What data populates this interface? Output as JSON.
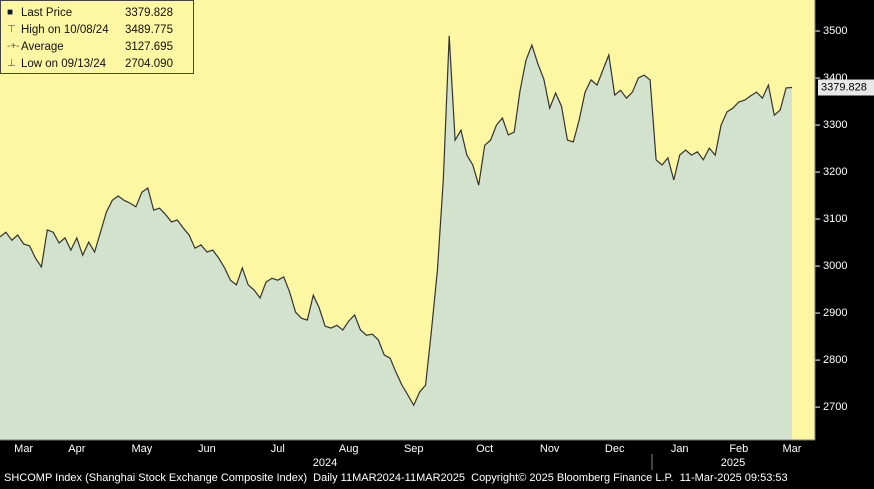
{
  "chart_data": {
    "type": "area",
    "categories": [
      null,
      null,
      null,
      null,
      "Mar",
      null,
      null,
      null,
      null,
      null,
      null,
      null,
      null,
      "Apr",
      null,
      null,
      null,
      null,
      null,
      null,
      null,
      null,
      null,
      null,
      "May",
      null,
      null,
      null,
      null,
      null,
      null,
      null,
      null,
      null,
      null,
      "Jun",
      null,
      null,
      null,
      null,
      null,
      null,
      null,
      null,
      null,
      null,
      null,
      "Jul",
      null,
      null,
      null,
      null,
      null,
      null,
      null,
      null,
      null,
      null,
      null,
      "Aug",
      null,
      null,
      null,
      null,
      null,
      null,
      null,
      null,
      null,
      null,
      "Sep",
      null,
      null,
      null,
      null,
      null,
      null,
      null,
      null,
      null,
      null,
      null,
      "Oct",
      null,
      null,
      null,
      null,
      null,
      null,
      null,
      null,
      null,
      null,
      "Nov",
      null,
      null,
      null,
      null,
      null,
      null,
      null,
      null,
      null,
      null,
      "Dec",
      null,
      null,
      null,
      null,
      null,
      null,
      null,
      null,
      null,
      null,
      "Jan",
      null,
      null,
      null,
      null,
      null,
      null,
      null,
      null,
      null,
      "Feb",
      null,
      null,
      null,
      null,
      null,
      null,
      null,
      null,
      "Mar"
    ],
    "values": [
      3062,
      3072,
      3055,
      3066,
      3047,
      3043,
      3017,
      2998,
      3077,
      3072,
      3049,
      3060,
      3034,
      3060,
      3023,
      3051,
      3030,
      3072,
      3115,
      3140,
      3149,
      3140,
      3134,
      3126,
      3157,
      3166,
      3119,
      3123,
      3110,
      3094,
      3098,
      3081,
      3066,
      3038,
      3045,
      3030,
      3034,
      3017,
      2996,
      2970,
      2960,
      2996,
      2960,
      2949,
      2932,
      2966,
      2974,
      2970,
      2977,
      2945,
      2902,
      2889,
      2885,
      2938,
      2911,
      2872,
      2868,
      2874,
      2864,
      2883,
      2896,
      2864,
      2853,
      2855,
      2843,
      2811,
      2804,
      2774,
      2747,
      2726,
      2704.09,
      2732,
      2747,
      2864,
      2991,
      3183,
      3489.775,
      3268,
      3289,
      3236,
      3215,
      3172,
      3257,
      3268,
      3300,
      3315,
      3279,
      3285,
      3374,
      3438,
      3470,
      3430,
      3398,
      3336,
      3368,
      3340,
      3268,
      3264,
      3311,
      3370,
      3396,
      3385,
      3417,
      3449,
      3364,
      3374,
      3357,
      3370,
      3400,
      3406,
      3396,
      3226,
      3215,
      3230,
      3183,
      3236,
      3247,
      3236,
      3243,
      3226,
      3251,
      3236,
      3300,
      3328,
      3336,
      3349,
      3353,
      3362,
      3370,
      3357,
      3385,
      3321,
      3332,
      3379,
      3379.828
    ],
    "x_group_labels": [
      "2024",
      "2025"
    ],
    "color": "#333333",
    "fill": "#d3e2cc",
    "ylim": [
      2630,
      3566
    ],
    "yticks": [
      2700,
      2800,
      2900,
      3000,
      3100,
      3200,
      3300,
      3400,
      3500
    ],
    "grid": false
  },
  "legend_box": {
    "entries": [
      {
        "label": "Last Price",
        "value": "3379.828"
      },
      {
        "label": "High on 10/08/24",
        "value": "3489.775"
      },
      {
        "label": "Average",
        "value": "3127.695"
      },
      {
        "label": "Low on 09/13/24",
        "value": "2704.090"
      }
    ]
  },
  "footer": {
    "text": "SHCOMP Index (Shanghai Stock Exchange Composite Index)  Daily 11MAR2024-11MAR2025  Copyright© 2025 Bloomberg Finance L.P.  11-Mar-2025 09:53:53"
  }
}
